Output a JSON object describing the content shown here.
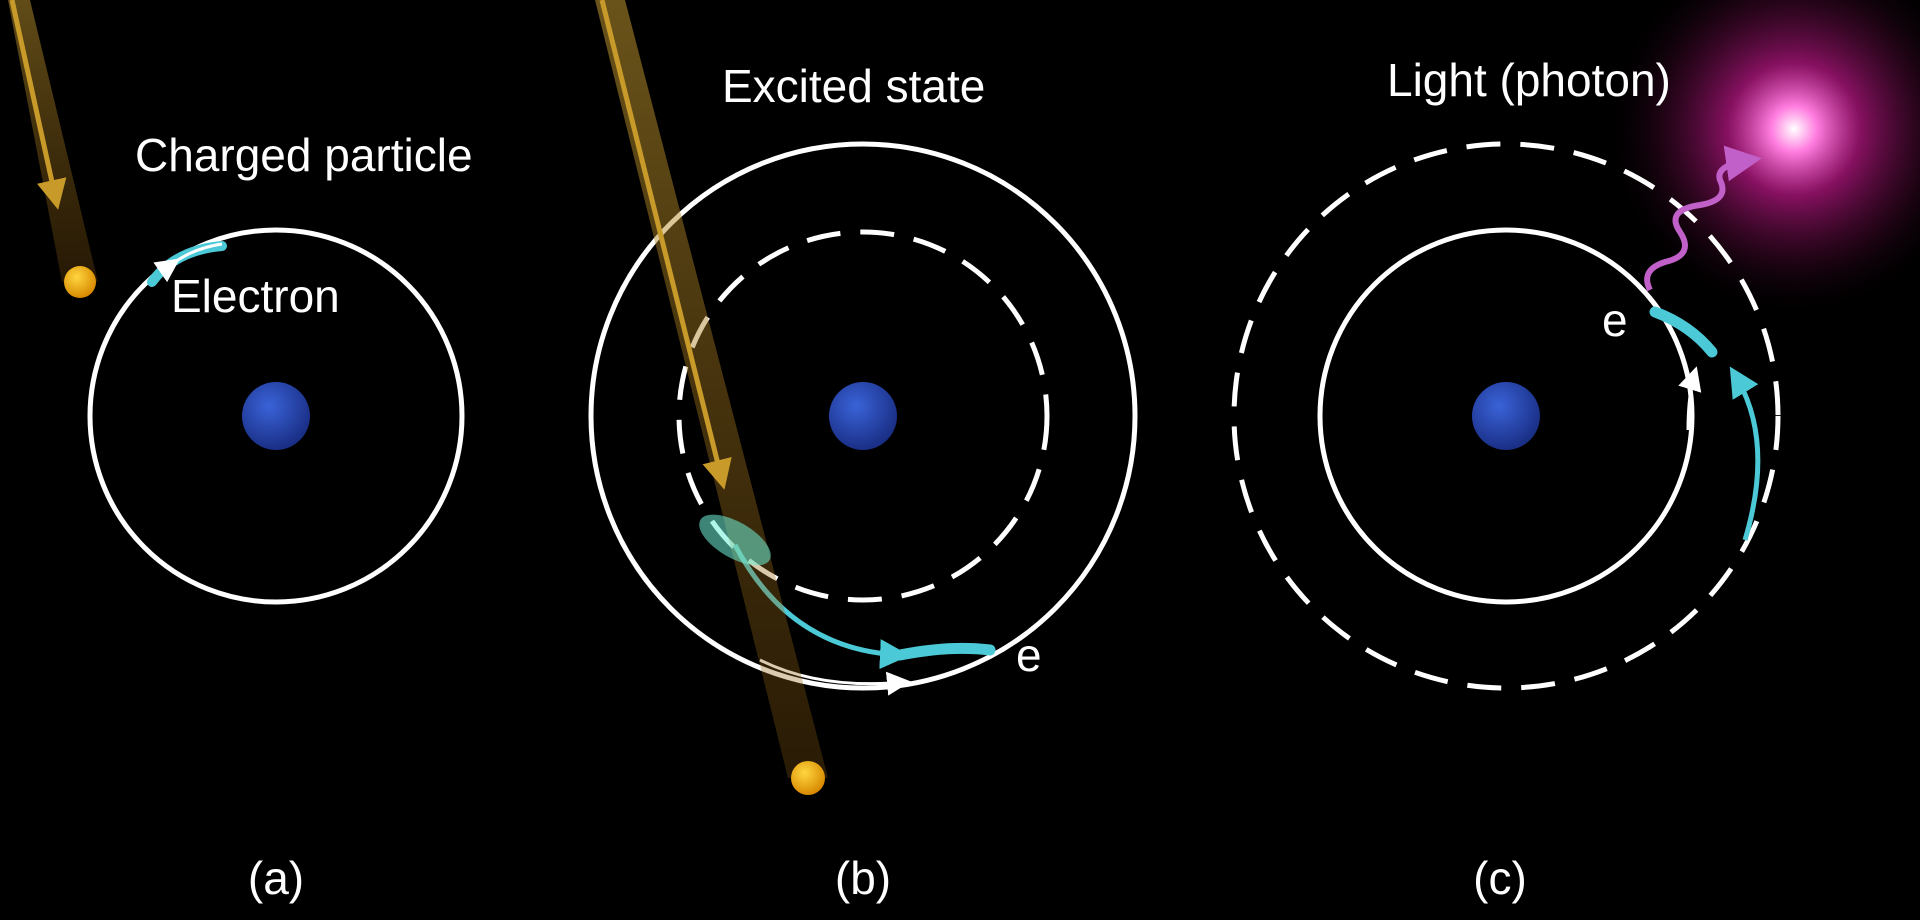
{
  "panels": [
    {
      "label": "(a)",
      "texts": [
        "Charged particle",
        "Electron"
      ]
    },
    {
      "label": "(b)",
      "texts": [
        "Excited state",
        "e"
      ]
    },
    {
      "label": "(c)",
      "texts": [
        "Light (photon)",
        "e"
      ]
    }
  ]
}
